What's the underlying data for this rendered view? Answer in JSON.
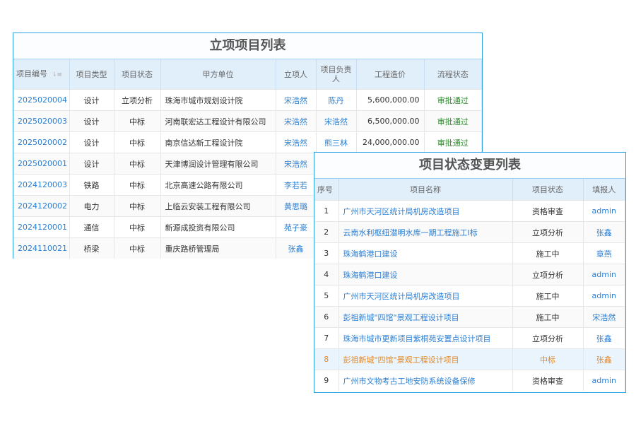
{
  "table1": {
    "title": "立项项目列表",
    "headers": [
      "项目编号",
      "项目类型",
      "项目状态",
      "甲方单位",
      "立项人",
      "项目负责人",
      "工程造价",
      "流程状态"
    ],
    "rows": [
      [
        "2025020004",
        "设计",
        "立项分析",
        "珠海市城市规划设计院",
        "宋浩然",
        "陈丹",
        "5,600,000.00",
        "审批通过"
      ],
      [
        "2025020003",
        "设计",
        "中标",
        "河南联宏达工程设计有限公司",
        "宋浩然",
        "宋浩然",
        "6,500,000.00",
        "审批通过"
      ],
      [
        "2025020002",
        "设计",
        "中标",
        "南京信达新工程设计院",
        "宋浩然",
        "熊三林",
        "24,000,000.00",
        "审批通过"
      ],
      [
        "2025020001",
        "设计",
        "中标",
        "天津博润设计管理有限公司",
        "宋浩然",
        "",
        "",
        ""
      ],
      [
        "2024120003",
        "铁路",
        "中标",
        "北京高速公路有限公司",
        "李若若",
        "",
        "",
        ""
      ],
      [
        "2024120002",
        "电力",
        "中标",
        "上临云安装工程有限公司",
        "黄思璐",
        "",
        "",
        ""
      ],
      [
        "2024120001",
        "通信",
        "中标",
        "新源成投资有限公司",
        "苑子豪",
        "",
        "",
        ""
      ],
      [
        "2024110021",
        "桥梁",
        "中标",
        "重庆路桥管理局",
        "张鑫",
        "",
        "",
        ""
      ]
    ]
  },
  "table2": {
    "title": "项目状态变更列表",
    "headers": [
      "序号",
      "项目名称",
      "项目状态",
      "填报人"
    ],
    "rows": [
      [
        "1",
        "广州市天河区统计局机房改造项目",
        "资格审查",
        "admin"
      ],
      [
        "2",
        "云南水利枢纽潜明水库一期工程施工I标",
        "立项分析",
        "张鑫"
      ],
      [
        "3",
        "珠海鹤港口建设",
        "施工中",
        "章燕"
      ],
      [
        "4",
        "珠海鹤港口建设",
        "立项分析",
        "admin"
      ],
      [
        "5",
        "广州市天河区统计局机房改造项目",
        "施工中",
        "admin"
      ],
      [
        "6",
        "彭祖新城\"四馆\"景观工程设计项目",
        "施工中",
        "宋浩然"
      ],
      [
        "7",
        "珠海市城市更新项目紫桐苑安置点设计项目",
        "立项分析",
        "张鑫"
      ],
      [
        "8",
        "彭祖新城\"四馆\"景观工程设计项目",
        "中标",
        "张鑫"
      ],
      [
        "9",
        "广州市文物考古工地安防系统设备保修",
        "资格审查",
        "admin"
      ]
    ],
    "highlighted_row": 8
  },
  "colors": {
    "border": "#29a3e6",
    "header_bg": "#e1effb",
    "link": "#2a7fd4",
    "approved": "#2e8b2e",
    "highlight": "#e08a2e"
  }
}
